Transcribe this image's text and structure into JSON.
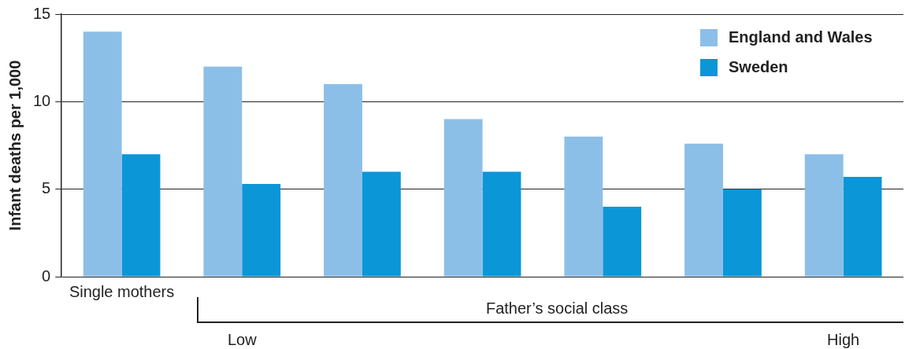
{
  "chart_data": {
    "type": "bar",
    "ylabel": "Infant deaths per 1,000",
    "xlabel": "Father’s social class",
    "categories": [
      "Single mothers",
      null,
      null,
      null,
      null,
      null,
      null
    ],
    "series": [
      {
        "name": "England and Wales",
        "color": "#8cbfe8",
        "values": [
          14,
          12,
          11,
          9,
          8,
          7.6,
          7
        ]
      },
      {
        "name": "Sweden",
        "color": "#0b96d8",
        "values": [
          7,
          5.3,
          6,
          6,
          4,
          5,
          5.7
        ]
      }
    ],
    "ylim": [
      0,
      15
    ],
    "yticks": [
      0,
      5,
      10,
      15
    ],
    "grid": "y",
    "legend": "top right",
    "annotations": [
      "Low",
      "High"
    ]
  }
}
